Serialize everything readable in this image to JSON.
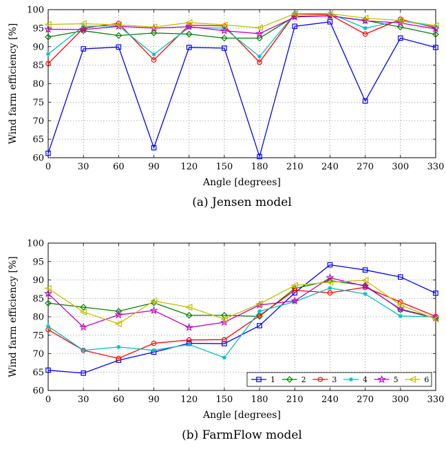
{
  "chart_data": [
    {
      "type": "line",
      "caption": "(a) Jensen model",
      "xlabel": "Angle [degrees]",
      "ylabel": "Wind farm efficiency [%]",
      "x": [
        0,
        30,
        60,
        90,
        120,
        150,
        180,
        210,
        240,
        270,
        300,
        330
      ],
      "xlim": [
        0,
        330
      ],
      "ylim": [
        60,
        100
      ],
      "yticks": [
        60,
        65,
        70,
        75,
        80,
        85,
        90,
        95,
        100
      ],
      "grid": true,
      "series": [
        {
          "name": "1",
          "color": "#0000ff",
          "marker": "square",
          "values": [
            61.2,
            89.4,
            89.9,
            62.7,
            89.8,
            89.6,
            60.3,
            95.5,
            96.7,
            75.3,
            92.3,
            89.8
          ]
        },
        {
          "name": "2",
          "color": "#007f00",
          "marker": "diamond",
          "values": [
            92.6,
            94.3,
            93.0,
            93.7,
            93.4,
            92.3,
            92.3,
            98.2,
            98.3,
            97.1,
            95.3,
            93.3
          ]
        },
        {
          "name": "3",
          "color": "#ff0000",
          "marker": "circle",
          "values": [
            85.4,
            95.0,
            96.3,
            86.4,
            95.8,
            95.6,
            85.8,
            98.8,
            98.6,
            93.4,
            97.4,
            95.1
          ]
        },
        {
          "name": "4",
          "color": "#00bfbf",
          "marker": "asterisk",
          "values": [
            88.0,
            95.5,
            95.6,
            87.9,
            95.2,
            95.0,
            87.3,
            98.9,
            99.0,
            95.0,
            97.0,
            95.4
          ]
        },
        {
          "name": "5",
          "color": "#bf00bf",
          "marker": "star",
          "values": [
            94.7,
            94.6,
            95.5,
            95.0,
            95.4,
            94.3,
            93.5,
            98.0,
            98.3,
            97.0,
            96.4,
            94.8
          ]
        },
        {
          "name": "6",
          "color": "#bfbf00",
          "marker": "triangle-left",
          "values": [
            96.0,
            96.2,
            95.9,
            95.3,
            96.5,
            95.9,
            95.1,
            98.9,
            98.9,
            97.7,
            97.1,
            95.7
          ]
        }
      ]
    },
    {
      "type": "line",
      "caption": "(b) FarmFlow model",
      "xlabel": "Angle [degrees]",
      "ylabel": "Wind farm efficiency [%]",
      "x": [
        0,
        30,
        60,
        90,
        120,
        150,
        180,
        210,
        240,
        270,
        300,
        330
      ],
      "xlim": [
        0,
        330
      ],
      "ylim": [
        60,
        100
      ],
      "yticks": [
        60,
        65,
        70,
        75,
        80,
        85,
        90,
        95,
        100
      ],
      "grid": true,
      "legend": "bottom-right",
      "legend_orientation": "horizontal",
      "series": [
        {
          "name": "1",
          "color": "#0000ff",
          "marker": "square",
          "values": [
            65.5,
            64.7,
            68.2,
            70.4,
            72.8,
            72.7,
            77.6,
            86.5,
            94.1,
            92.7,
            90.8,
            86.4
          ]
        },
        {
          "name": "2",
          "color": "#007f00",
          "marker": "diamond",
          "values": [
            83.7,
            82.6,
            81.5,
            83.8,
            80.4,
            80.4,
            80.1,
            87.7,
            89.8,
            88.5,
            81.9,
            79.6
          ]
        },
        {
          "name": "3",
          "color": "#ff0000",
          "marker": "circle",
          "values": [
            76.5,
            70.9,
            68.7,
            72.8,
            73.7,
            73.8,
            80.3,
            87.2,
            86.5,
            88.0,
            84.0,
            80.1
          ]
        },
        {
          "name": "4",
          "color": "#00bfbf",
          "marker": "asterisk",
          "values": [
            77.4,
            70.9,
            71.8,
            70.9,
            72.5,
            68.9,
            81.5,
            84.1,
            87.8,
            86.2,
            80.2,
            80.0
          ]
        },
        {
          "name": "5",
          "color": "#bf00bf",
          "marker": "star",
          "values": [
            86.3,
            77.2,
            80.5,
            81.7,
            77.1,
            78.5,
            83.2,
            84.3,
            90.6,
            88.3,
            82.1,
            79.7
          ]
        },
        {
          "name": "6",
          "color": "#bfbf00",
          "marker": "triangle-left",
          "values": [
            87.7,
            81.3,
            78.1,
            84.3,
            82.6,
            79.4,
            83.5,
            88.5,
            89.4,
            89.9,
            83.2,
            79.4
          ]
        }
      ]
    }
  ]
}
